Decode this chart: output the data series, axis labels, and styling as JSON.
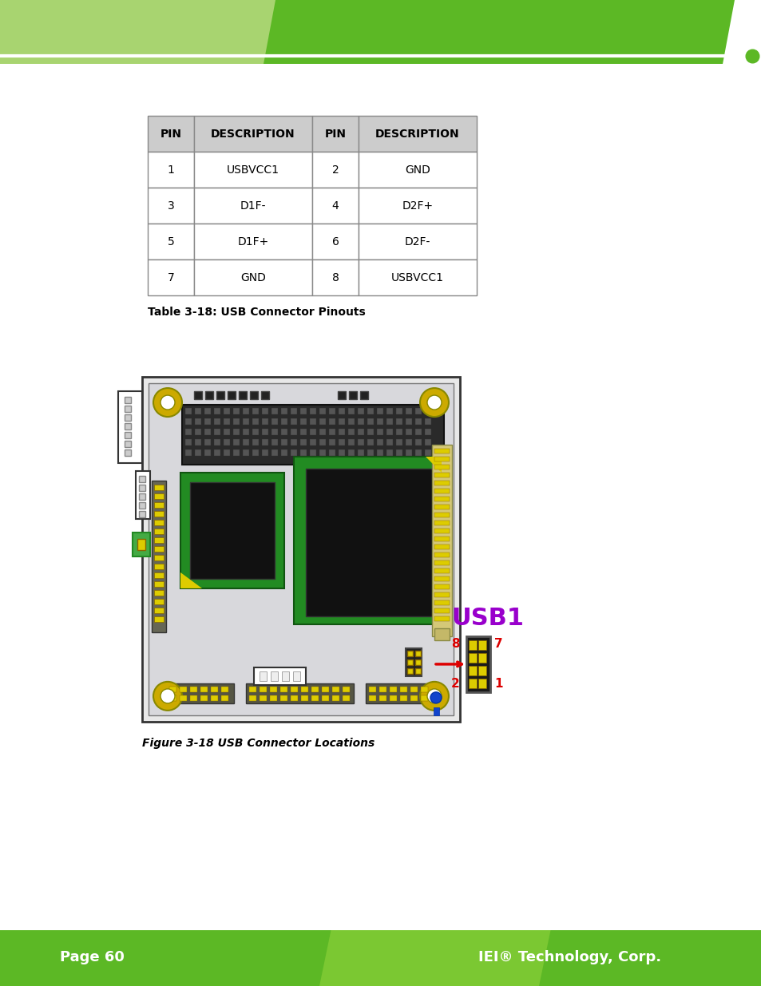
{
  "page_bg": "#ffffff",
  "header_light_green": "#a8d470",
  "header_dark_green": "#5cb825",
  "footer_dark_green": "#5cb825",
  "footer_light_green": "#7bc832",
  "page_number": "Page 60",
  "company": "IEI® Technology, Corp.",
  "table_header_bg": "#cccccc",
  "table_border": "#888888",
  "table_caption": "Table 3-18: USB Connector Pinouts",
  "figure_caption": "Figure 3-18 USB Connector Locations",
  "table_headers": [
    "PIN",
    "DESCRIPTION",
    "PIN",
    "DESCRIPTION"
  ],
  "table_rows": [
    [
      "1",
      "USBVCC1",
      "2",
      "GND"
    ],
    [
      "3",
      "D1F-",
      "4",
      "D2F+"
    ],
    [
      "5",
      "D1F+",
      "6",
      "D2F-"
    ],
    [
      "7",
      "GND",
      "8",
      "USBVCC1"
    ]
  ],
  "usb_label": "USB1",
  "usb_label_color": "#9900cc",
  "arrow_color": "#dd0000",
  "pin_label_color": "#dd0000",
  "board_bg": "#e0e0e0",
  "board_border": "#444444",
  "pcb_bg": "#d4d4d8",
  "pcb_green": "#228B22",
  "chip_black": "#111111",
  "yellow_pin": "#ddcc00",
  "gold_ring": "#ccaa00",
  "connector_tan": "#d4c87a",
  "connector_dark": "#555555",
  "left_connector_bg": "#888877"
}
